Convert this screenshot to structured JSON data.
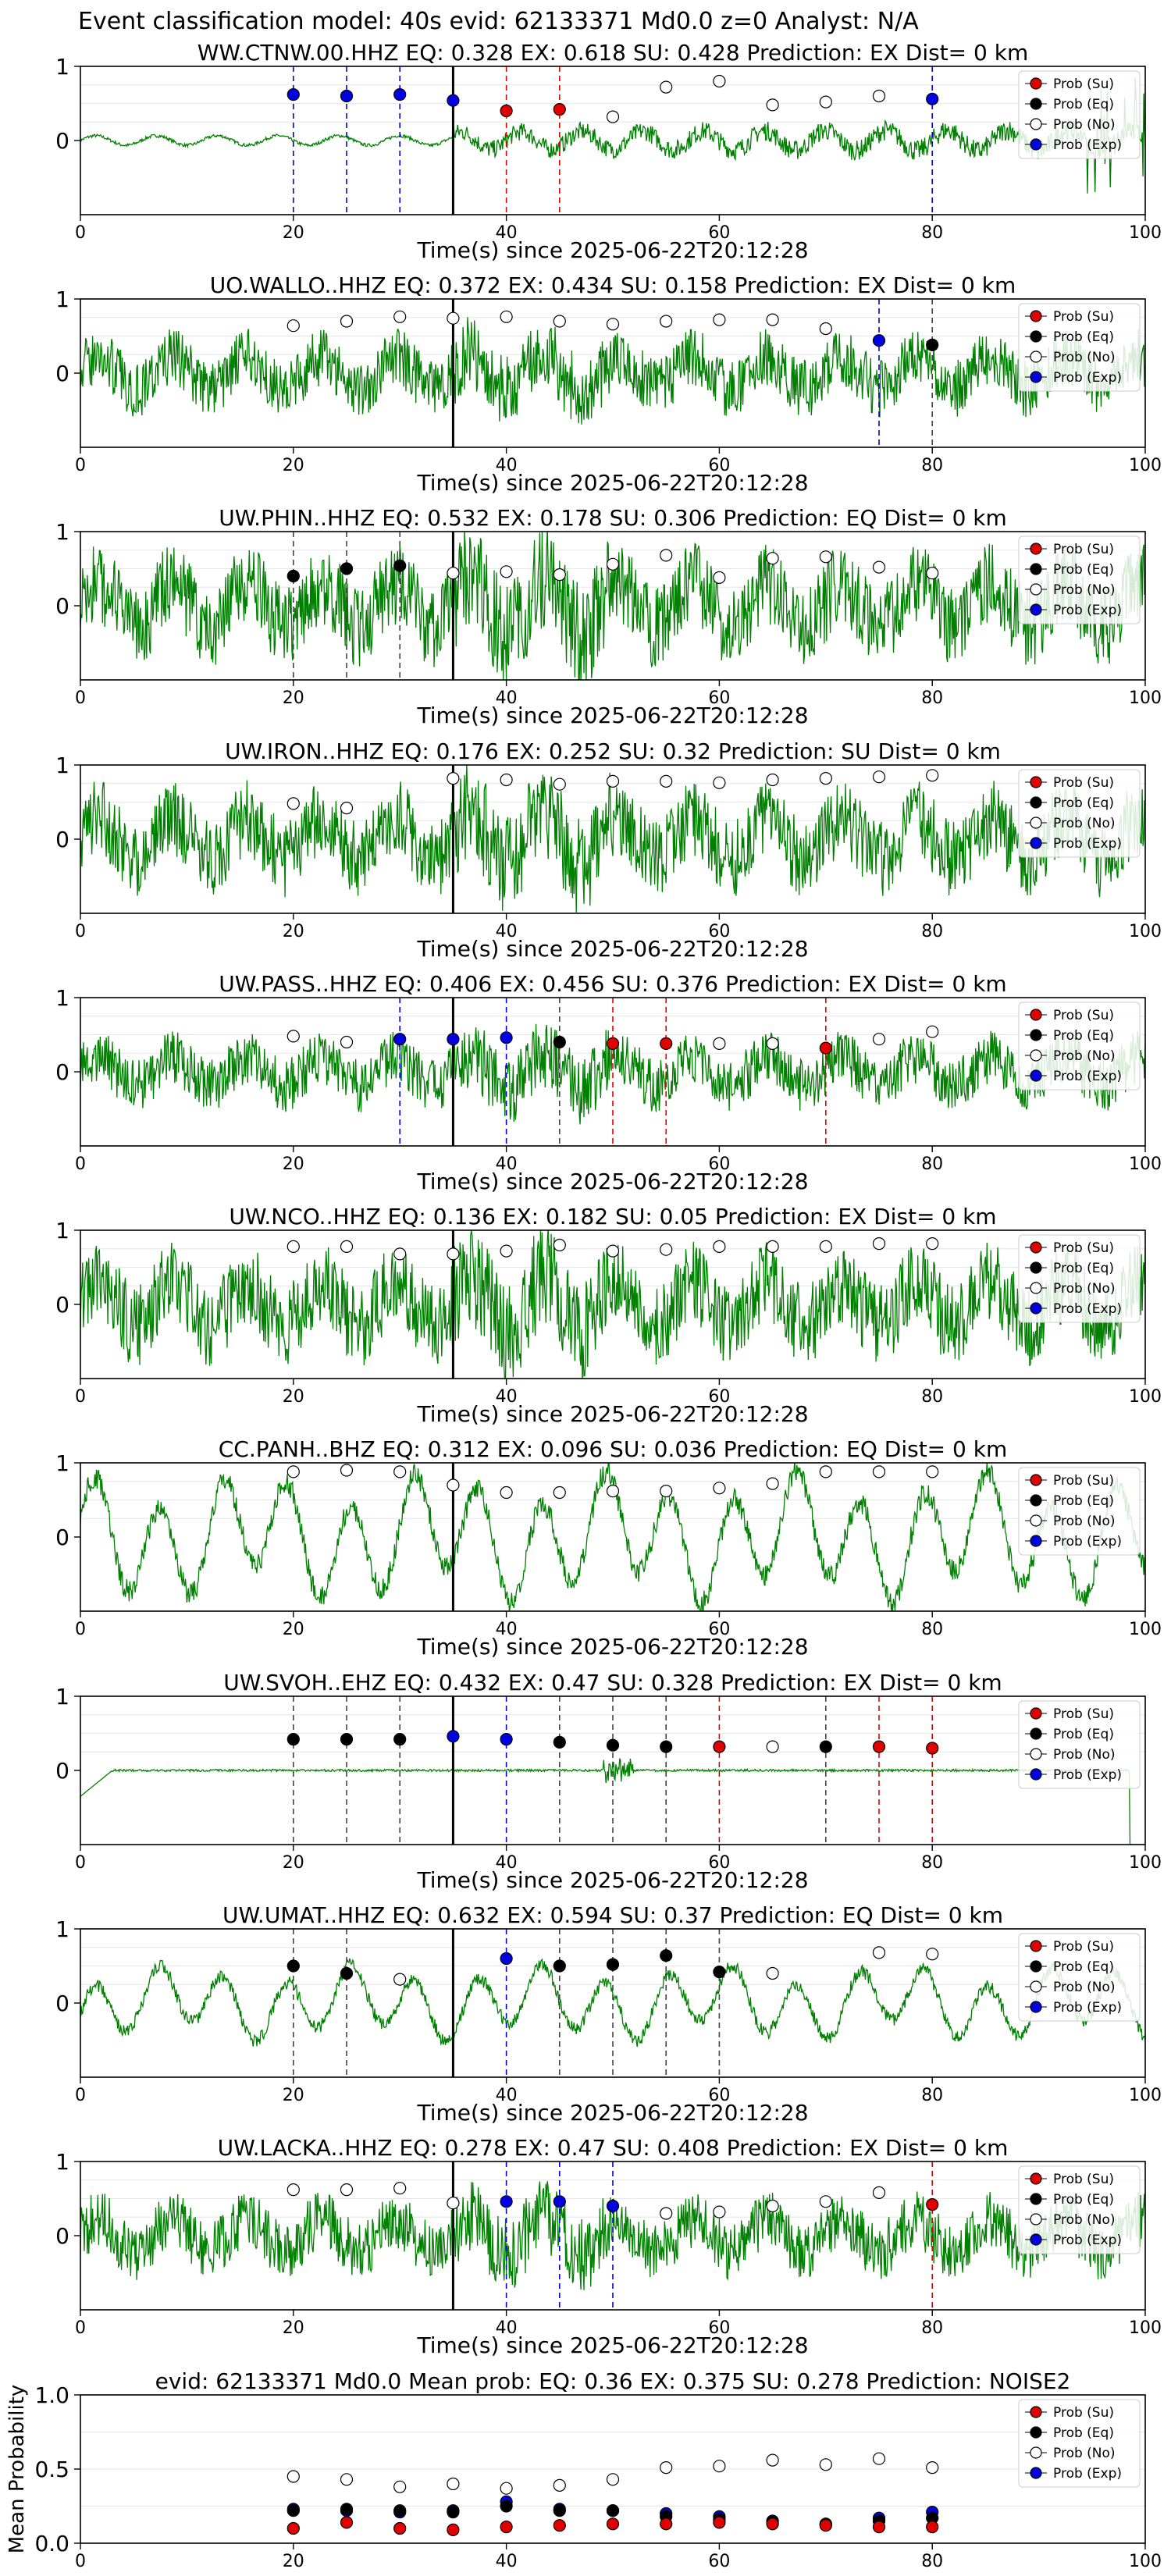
{
  "figure": {
    "suptitle": "Event classification model: 40s evid: 62133371 Md0.0 z=0 Analyst: N/A"
  },
  "legend_labels": [
    "Prob (Su)",
    "Prob (Eq)",
    "Prob (No)",
    "Prob (Exp)"
  ],
  "colors": {
    "trace": "#008000",
    "su": "#e00000",
    "eq": "#000000",
    "no": "#ffffff",
    "exp": "#0000e0",
    "frame": "#000000",
    "grid": "#e6e6e6"
  },
  "chart_data": [
    {
      "type": "line",
      "station": "WW.CTNW.00.HHZ",
      "title": "WW.CTNW.00.HHZ   EQ: 0.328   EX: 0.618   SU: 0.428   Prediction: EX    Dist= 0 km",
      "xlabel": "Time(s) since 2025-06-22T20:12:28",
      "xlim": [
        0,
        100
      ],
      "ylim": [
        -1,
        1
      ],
      "xticks": [
        "0",
        "20",
        "40",
        "60",
        "80",
        "100"
      ],
      "yticks": [
        "0",
        "1"
      ],
      "onset": 35,
      "amplitude": 0.18,
      "style": "low",
      "probs": [
        {
          "t": 20,
          "p": 0.62,
          "c": "exp"
        },
        {
          "t": 25,
          "p": 0.6,
          "c": "exp"
        },
        {
          "t": 30,
          "p": 0.62,
          "c": "exp"
        },
        {
          "t": 35,
          "p": 0.54,
          "c": "exp"
        },
        {
          "t": 40,
          "p": 0.4,
          "c": "su"
        },
        {
          "t": 45,
          "p": 0.42,
          "c": "su"
        },
        {
          "t": 50,
          "p": 0.32,
          "c": "no"
        },
        {
          "t": 55,
          "p": 0.72,
          "c": "no"
        },
        {
          "t": 60,
          "p": 0.8,
          "c": "no"
        },
        {
          "t": 65,
          "p": 0.48,
          "c": "no"
        },
        {
          "t": 70,
          "p": 0.52,
          "c": "no"
        },
        {
          "t": 75,
          "p": 0.6,
          "c": "no"
        },
        {
          "t": 80,
          "p": 0.56,
          "c": "exp"
        }
      ]
    },
    {
      "type": "line",
      "station": "UO.WALLO..HHZ",
      "title": "UO.WALLO..HHZ   EQ: 0.372  EX: 0.434  SU: 0.158   Prediction: EX    Dist= 0 km",
      "xlabel": "Time(s) since 2025-06-22T20:12:28",
      "xlim": [
        0,
        100
      ],
      "ylim": [
        -1,
        1
      ],
      "xticks": [
        "0",
        "20",
        "40",
        "60",
        "80",
        "100"
      ],
      "yticks": [
        "0",
        "1"
      ],
      "onset": 35,
      "amplitude": 0.6,
      "style": "noise",
      "probs": [
        {
          "t": 20,
          "p": 0.64,
          "c": "no"
        },
        {
          "t": 25,
          "p": 0.7,
          "c": "no"
        },
        {
          "t": 30,
          "p": 0.76,
          "c": "no"
        },
        {
          "t": 35,
          "p": 0.74,
          "c": "no"
        },
        {
          "t": 40,
          "p": 0.76,
          "c": "no"
        },
        {
          "t": 45,
          "p": 0.7,
          "c": "no"
        },
        {
          "t": 50,
          "p": 0.66,
          "c": "no"
        },
        {
          "t": 55,
          "p": 0.7,
          "c": "no"
        },
        {
          "t": 60,
          "p": 0.72,
          "c": "no"
        },
        {
          "t": 65,
          "p": 0.72,
          "c": "no"
        },
        {
          "t": 70,
          "p": 0.6,
          "c": "no"
        },
        {
          "t": 75,
          "p": 0.44,
          "c": "exp"
        },
        {
          "t": 80,
          "p": 0.38,
          "c": "eq"
        }
      ]
    },
    {
      "type": "line",
      "station": "UW.PHIN..HHZ",
      "title": "UW.PHIN..HHZ   EQ: 0.532  EX: 0.178  SU: 0.306   Prediction: EQ    Dist= 0 km",
      "xlabel": "Time(s) since 2025-06-22T20:12:28",
      "xlim": [
        0,
        100
      ],
      "ylim": [
        -1,
        1
      ],
      "xticks": [
        "0",
        "20",
        "40",
        "60",
        "80",
        "100"
      ],
      "yticks": [
        "0",
        "1"
      ],
      "onset": 35,
      "amplitude": 0.85,
      "style": "noise",
      "probs": [
        {
          "t": 20,
          "p": 0.4,
          "c": "eq"
        },
        {
          "t": 25,
          "p": 0.5,
          "c": "eq"
        },
        {
          "t": 30,
          "p": 0.54,
          "c": "eq"
        },
        {
          "t": 35,
          "p": 0.44,
          "c": "no"
        },
        {
          "t": 40,
          "p": 0.46,
          "c": "no"
        },
        {
          "t": 45,
          "p": 0.42,
          "c": "no"
        },
        {
          "t": 50,
          "p": 0.56,
          "c": "no"
        },
        {
          "t": 55,
          "p": 0.68,
          "c": "no"
        },
        {
          "t": 60,
          "p": 0.38,
          "c": "no"
        },
        {
          "t": 65,
          "p": 0.64,
          "c": "no"
        },
        {
          "t": 70,
          "p": 0.66,
          "c": "no"
        },
        {
          "t": 75,
          "p": 0.52,
          "c": "no"
        },
        {
          "t": 80,
          "p": 0.44,
          "c": "no"
        }
      ]
    },
    {
      "type": "line",
      "station": "UW.IRON..HHZ",
      "title": "UW.IRON..HHZ   EQ: 0.176  EX: 0.252  SU: 0.32   Prediction: SU    Dist= 0 km",
      "xlabel": "Time(s) since 2025-06-22T20:12:28",
      "xlim": [
        0,
        100
      ],
      "ylim": [
        -1,
        1
      ],
      "xticks": [
        "0",
        "20",
        "40",
        "60",
        "80",
        "100"
      ],
      "yticks": [
        "0",
        "1"
      ],
      "onset": 35,
      "amplitude": 0.8,
      "style": "noise",
      "probs": [
        {
          "t": 20,
          "p": 0.48,
          "c": "no"
        },
        {
          "t": 25,
          "p": 0.42,
          "c": "no"
        },
        {
          "t": 35,
          "p": 0.82,
          "c": "no"
        },
        {
          "t": 40,
          "p": 0.8,
          "c": "no"
        },
        {
          "t": 45,
          "p": 0.74,
          "c": "no"
        },
        {
          "t": 50,
          "p": 0.78,
          "c": "no"
        },
        {
          "t": 55,
          "p": 0.78,
          "c": "no"
        },
        {
          "t": 60,
          "p": 0.76,
          "c": "no"
        },
        {
          "t": 65,
          "p": 0.8,
          "c": "no"
        },
        {
          "t": 70,
          "p": 0.82,
          "c": "no"
        },
        {
          "t": 75,
          "p": 0.84,
          "c": "no"
        },
        {
          "t": 80,
          "p": 0.86,
          "c": "no"
        }
      ]
    },
    {
      "type": "line",
      "station": "UW.PASS..HHZ",
      "title": "UW.PASS..HHZ   EQ: 0.406  EX: 0.456  SU: 0.376   Prediction: EX    Dist= 0 km",
      "xlabel": "Time(s) since 2025-06-22T20:12:28",
      "xlim": [
        0,
        100
      ],
      "ylim": [
        -1,
        1
      ],
      "xticks": [
        "0",
        "20",
        "40",
        "60",
        "80",
        "100"
      ],
      "yticks": [
        "0",
        "1"
      ],
      "onset": 35,
      "amplitude": 0.55,
      "style": "noise",
      "probs": [
        {
          "t": 20,
          "p": 0.48,
          "c": "no"
        },
        {
          "t": 25,
          "p": 0.4,
          "c": "no"
        },
        {
          "t": 30,
          "p": 0.44,
          "c": "exp"
        },
        {
          "t": 35,
          "p": 0.44,
          "c": "exp"
        },
        {
          "t": 40,
          "p": 0.46,
          "c": "exp"
        },
        {
          "t": 45,
          "p": 0.4,
          "c": "eq"
        },
        {
          "t": 50,
          "p": 0.38,
          "c": "su"
        },
        {
          "t": 55,
          "p": 0.38,
          "c": "su"
        },
        {
          "t": 60,
          "p": 0.38,
          "c": "no"
        },
        {
          "t": 65,
          "p": 0.38,
          "c": "no"
        },
        {
          "t": 70,
          "p": 0.32,
          "c": "su"
        },
        {
          "t": 75,
          "p": 0.44,
          "c": "no"
        },
        {
          "t": 80,
          "p": 0.54,
          "c": "no"
        }
      ]
    },
    {
      "type": "line",
      "station": "UW.NCO..HHZ",
      "title": "UW.NCO..HHZ   EQ: 0.136  EX: 0.182  SU: 0.05   Prediction: EX    Dist= 0 km",
      "xlabel": "Time(s) since 2025-06-22T20:12:28",
      "xlim": [
        0,
        100
      ],
      "ylim": [
        -1,
        1
      ],
      "xticks": [
        "0",
        "20",
        "40",
        "60",
        "80",
        "100"
      ],
      "yticks": [
        "0",
        "1"
      ],
      "onset": 35,
      "amplitude": 0.85,
      "style": "noise",
      "probs": [
        {
          "t": 20,
          "p": 0.78,
          "c": "no"
        },
        {
          "t": 25,
          "p": 0.78,
          "c": "no"
        },
        {
          "t": 30,
          "p": 0.68,
          "c": "no"
        },
        {
          "t": 35,
          "p": 0.68,
          "c": "no"
        },
        {
          "t": 40,
          "p": 0.72,
          "c": "no"
        },
        {
          "t": 45,
          "p": 0.8,
          "c": "no"
        },
        {
          "t": 50,
          "p": 0.72,
          "c": "no"
        },
        {
          "t": 55,
          "p": 0.74,
          "c": "no"
        },
        {
          "t": 60,
          "p": 0.78,
          "c": "no"
        },
        {
          "t": 65,
          "p": 0.78,
          "c": "no"
        },
        {
          "t": 70,
          "p": 0.78,
          "c": "no"
        },
        {
          "t": 75,
          "p": 0.82,
          "c": "no"
        },
        {
          "t": 80,
          "p": 0.82,
          "c": "no"
        }
      ]
    },
    {
      "type": "line",
      "station": "CC.PANH..BHZ",
      "title": "CC.PANH..BHZ   EQ: 0.312  EX: 0.096  SU: 0.036   Prediction: EQ    Dist= 0 km",
      "xlabel": "Time(s) since 2025-06-22T20:12:28",
      "xlim": [
        0,
        100
      ],
      "ylim": [
        -1,
        1
      ],
      "xticks": [
        "0",
        "20",
        "40",
        "60",
        "80",
        "100"
      ],
      "yticks": [
        "0",
        "1"
      ],
      "onset": 35,
      "amplitude": 0.85,
      "style": "wave",
      "probs": [
        {
          "t": 20,
          "p": 0.88,
          "c": "no"
        },
        {
          "t": 25,
          "p": 0.9,
          "c": "no"
        },
        {
          "t": 30,
          "p": 0.88,
          "c": "no"
        },
        {
          "t": 35,
          "p": 0.7,
          "c": "no"
        },
        {
          "t": 40,
          "p": 0.6,
          "c": "no"
        },
        {
          "t": 45,
          "p": 0.6,
          "c": "no"
        },
        {
          "t": 50,
          "p": 0.62,
          "c": "no"
        },
        {
          "t": 55,
          "p": 0.62,
          "c": "no"
        },
        {
          "t": 60,
          "p": 0.66,
          "c": "no"
        },
        {
          "t": 65,
          "p": 0.72,
          "c": "no"
        },
        {
          "t": 70,
          "p": 0.88,
          "c": "no"
        },
        {
          "t": 75,
          "p": 0.88,
          "c": "no"
        },
        {
          "t": 80,
          "p": 0.88,
          "c": "no"
        }
      ]
    },
    {
      "type": "line",
      "station": "UW.SVOH..EHZ",
      "title": "UW.SVOH..EHZ   EQ: 0.432  EX: 0.47  SU: 0.328   Prediction: EX    Dist= 0 km",
      "xlabel": "Time(s) since 2025-06-22T20:12:28",
      "xlim": [
        0,
        100
      ],
      "ylim": [
        -1,
        1
      ],
      "xticks": [
        "0",
        "20",
        "40",
        "60",
        "80",
        "100"
      ],
      "yticks": [
        "0",
        "1"
      ],
      "onset": 35,
      "amplitude": 0.03,
      "style": "flat",
      "probs": [
        {
          "t": 20,
          "p": 0.42,
          "c": "eq"
        },
        {
          "t": 25,
          "p": 0.42,
          "c": "eq"
        },
        {
          "t": 30,
          "p": 0.42,
          "c": "eq"
        },
        {
          "t": 35,
          "p": 0.46,
          "c": "exp"
        },
        {
          "t": 40,
          "p": 0.42,
          "c": "exp"
        },
        {
          "t": 45,
          "p": 0.38,
          "c": "eq"
        },
        {
          "t": 50,
          "p": 0.34,
          "c": "eq"
        },
        {
          "t": 55,
          "p": 0.32,
          "c": "eq"
        },
        {
          "t": 60,
          "p": 0.32,
          "c": "su"
        },
        {
          "t": 65,
          "p": 0.32,
          "c": "no"
        },
        {
          "t": 70,
          "p": 0.32,
          "c": "eq"
        },
        {
          "t": 75,
          "p": 0.32,
          "c": "su"
        },
        {
          "t": 80,
          "p": 0.3,
          "c": "su"
        }
      ]
    },
    {
      "type": "line",
      "station": "UW.UMAT..HHZ",
      "title": "UW.UMAT..HHZ   EQ: 0.632  EX: 0.594  SU: 0.37   Prediction: EQ    Dist= 0 km",
      "xlabel": "Time(s) since 2025-06-22T20:12:28",
      "xlim": [
        0,
        100
      ],
      "ylim": [
        -1,
        1
      ],
      "xticks": [
        "0",
        "20",
        "40",
        "60",
        "80",
        "100"
      ],
      "yticks": [
        "0",
        "1"
      ],
      "onset": 35,
      "amplitude": 0.5,
      "style": "wave",
      "probs": [
        {
          "t": 20,
          "p": 0.5,
          "c": "eq"
        },
        {
          "t": 25,
          "p": 0.4,
          "c": "eq"
        },
        {
          "t": 30,
          "p": 0.32,
          "c": "no"
        },
        {
          "t": 40,
          "p": 0.6,
          "c": "exp"
        },
        {
          "t": 45,
          "p": 0.5,
          "c": "eq"
        },
        {
          "t": 50,
          "p": 0.52,
          "c": "eq"
        },
        {
          "t": 55,
          "p": 0.64,
          "c": "eq"
        },
        {
          "t": 60,
          "p": 0.42,
          "c": "eq"
        },
        {
          "t": 65,
          "p": 0.4,
          "c": "no"
        },
        {
          "t": 75,
          "p": 0.68,
          "c": "no"
        },
        {
          "t": 80,
          "p": 0.66,
          "c": "no"
        }
      ]
    },
    {
      "type": "line",
      "station": "UW.LACKA..HHZ",
      "title": "UW.LACKA..HHZ   EQ: 0.278  EX: 0.47  SU: 0.408   Prediction: EX    Dist= 0 km",
      "xlabel": "Time(s) since 2025-06-22T20:12:28",
      "xlim": [
        0,
        100
      ],
      "ylim": [
        -1,
        1
      ],
      "xticks": [
        "0",
        "20",
        "40",
        "60",
        "80",
        "100"
      ],
      "yticks": [
        "0",
        "1"
      ],
      "onset": 35,
      "amplitude": 0.6,
      "style": "noise",
      "probs": [
        {
          "t": 20,
          "p": 0.62,
          "c": "no"
        },
        {
          "t": 25,
          "p": 0.62,
          "c": "no"
        },
        {
          "t": 30,
          "p": 0.64,
          "c": "no"
        },
        {
          "t": 35,
          "p": 0.44,
          "c": "no"
        },
        {
          "t": 40,
          "p": 0.46,
          "c": "exp"
        },
        {
          "t": 45,
          "p": 0.46,
          "c": "exp"
        },
        {
          "t": 50,
          "p": 0.4,
          "c": "exp"
        },
        {
          "t": 55,
          "p": 0.3,
          "c": "no"
        },
        {
          "t": 60,
          "p": 0.32,
          "c": "no"
        },
        {
          "t": 65,
          "p": 0.4,
          "c": "no"
        },
        {
          "t": 70,
          "p": 0.46,
          "c": "no"
        },
        {
          "t": 75,
          "p": 0.58,
          "c": "no"
        },
        {
          "t": 80,
          "p": 0.42,
          "c": "su"
        }
      ]
    },
    {
      "type": "scatter",
      "summary": true,
      "title": "evid: 62133371  Md0.0   Mean prob:   EQ: 0.36  EX: 0.375  SU: 0.278   Prediction: NOISE2",
      "ylabel": "Mean Probability",
      "xlim": [
        0,
        100
      ],
      "ylim": [
        0,
        1
      ],
      "xticks": [
        "0",
        "20",
        "40",
        "60",
        "80",
        "100"
      ],
      "yticks": [
        "0.0",
        "0.5",
        "1.0"
      ],
      "x": [
        20,
        25,
        30,
        35,
        40,
        45,
        50,
        55,
        60,
        65,
        70,
        75,
        80
      ],
      "series": [
        {
          "key": "no",
          "name": "Prob (No)",
          "values": [
            0.45,
            0.43,
            0.38,
            0.4,
            0.37,
            0.39,
            0.43,
            0.51,
            0.52,
            0.56,
            0.53,
            0.57,
            0.51
          ]
        },
        {
          "key": "exp",
          "name": "Prob (Exp)",
          "values": [
            0.23,
            0.22,
            0.21,
            0.22,
            0.28,
            0.23,
            0.22,
            0.2,
            0.18,
            0.15,
            0.13,
            0.17,
            0.21
          ]
        },
        {
          "key": "eq",
          "name": "Prob (Eq)",
          "values": [
            0.22,
            0.23,
            0.22,
            0.21,
            0.25,
            0.22,
            0.22,
            0.18,
            0.16,
            0.14,
            0.13,
            0.15,
            0.17
          ]
        },
        {
          "key": "su",
          "name": "Prob (Su)",
          "values": [
            0.1,
            0.14,
            0.1,
            0.09,
            0.11,
            0.12,
            0.13,
            0.13,
            0.14,
            0.13,
            0.12,
            0.11,
            0.11
          ]
        }
      ]
    }
  ]
}
